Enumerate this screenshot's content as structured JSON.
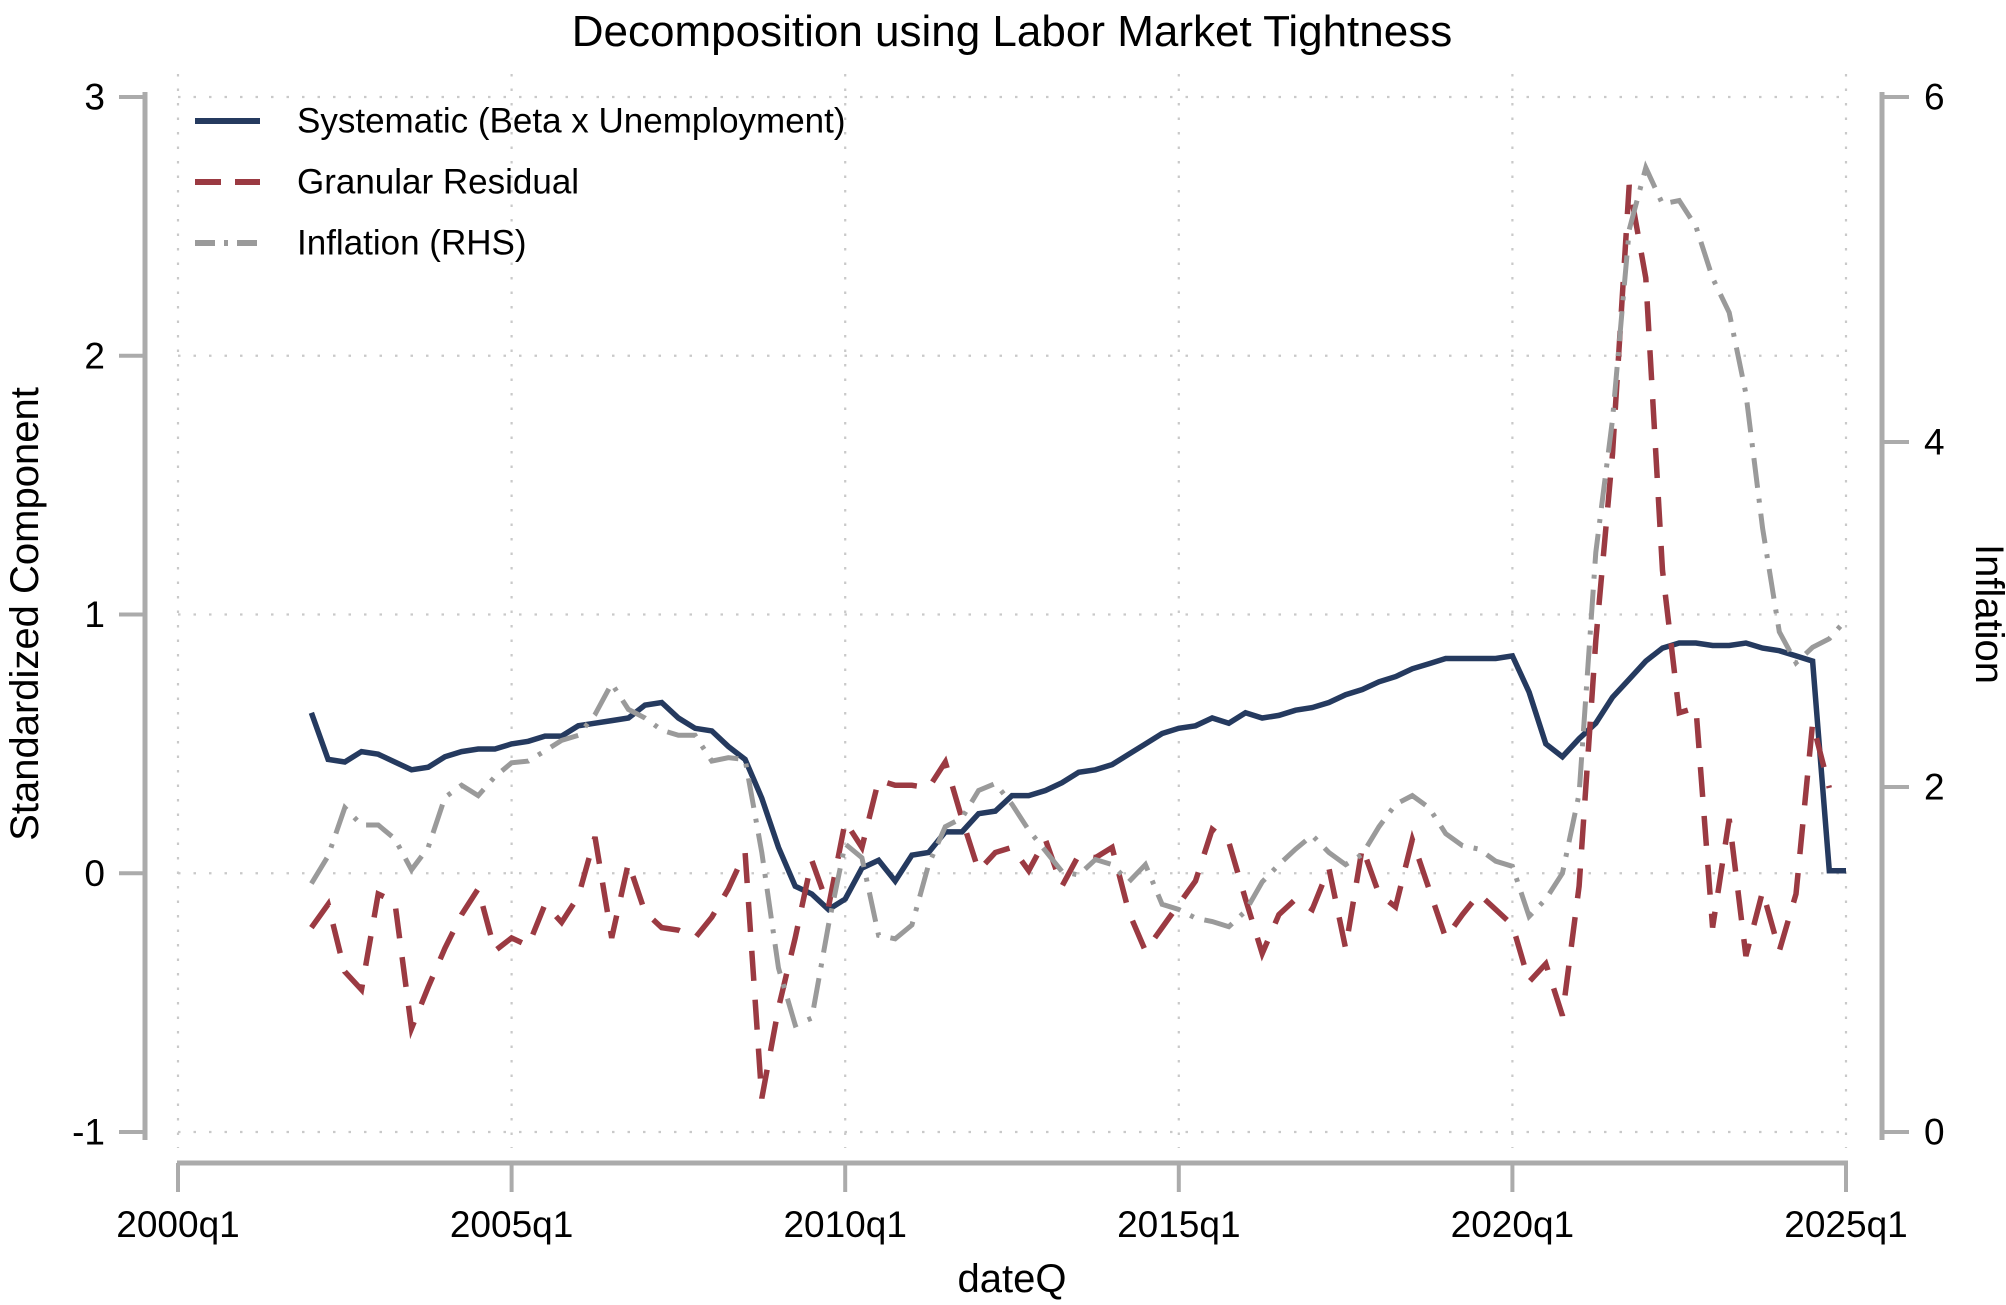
{
  "title": "Decomposition using Labor Market Tightness",
  "axes": {
    "left": {
      "title": "Standardized Component",
      "ticks": [
        "3",
        "2",
        "1",
        "0",
        "-1"
      ],
      "tick_values": [
        3,
        2,
        1,
        0,
        -1
      ],
      "range": [
        -1,
        3
      ]
    },
    "right": {
      "title": "Inflation",
      "ticks": [
        "6",
        "4",
        "2",
        "0"
      ],
      "tick_values": [
        6,
        4,
        2,
        0
      ],
      "range": [
        0,
        6
      ]
    },
    "x": {
      "title": "dateQ",
      "ticks": [
        "2000q1",
        "2005q1",
        "2010q1",
        "2015q1",
        "2020q1",
        "2025q1"
      ],
      "range": [
        "2000q1",
        "2025q1"
      ]
    }
  },
  "legend": {
    "items": [
      {
        "label": "Systematic (Beta x Unemployment)",
        "color": "#253a5f",
        "pattern": "solid"
      },
      {
        "label": "Granular Residual",
        "color": "#9b3a42",
        "pattern": "dashed"
      },
      {
        "label": "Inflation (RHS)",
        "color": "#9a9a9a",
        "pattern": "dash-dot"
      }
    ]
  },
  "colors": {
    "systematic": "#253a5f",
    "granular": "#9b3a42",
    "inflation": "#9a9a9a",
    "axis_line": "#ababab",
    "gridline": "#c9c9c9",
    "text": "#000000",
    "background": "#ffffff"
  },
  "chart_data": {
    "type": "line",
    "grid": true,
    "legend_position": "top-left",
    "xlabel": "dateQ",
    "ylabel_left": "Standardized Component",
    "ylabel_right": "Inflation",
    "ylim_left": [
      -1,
      3
    ],
    "ylim_right": [
      0,
      6
    ],
    "xlim": [
      "2000q1",
      "2025q1"
    ],
    "x": [
      "2002q1",
      "2002q2",
      "2002q3",
      "2002q4",
      "2003q1",
      "2003q2",
      "2003q3",
      "2003q4",
      "2004q1",
      "2004q2",
      "2004q3",
      "2004q4",
      "2005q1",
      "2005q2",
      "2005q3",
      "2005q4",
      "2006q1",
      "2006q2",
      "2006q3",
      "2006q4",
      "2007q1",
      "2007q2",
      "2007q3",
      "2007q4",
      "2008q1",
      "2008q2",
      "2008q3",
      "2008q4",
      "2009q1",
      "2009q2",
      "2009q3",
      "2009q4",
      "2010q1",
      "2010q2",
      "2010q3",
      "2010q4",
      "2011q1",
      "2011q2",
      "2011q3",
      "2011q4",
      "2012q1",
      "2012q2",
      "2012q3",
      "2012q4",
      "2013q1",
      "2013q2",
      "2013q3",
      "2013q4",
      "2014q1",
      "2014q2",
      "2014q3",
      "2014q4",
      "2015q1",
      "2015q2",
      "2015q3",
      "2015q4",
      "2016q1",
      "2016q2",
      "2016q3",
      "2016q4",
      "2017q1",
      "2017q2",
      "2017q3",
      "2017q4",
      "2018q1",
      "2018q2",
      "2018q3",
      "2018q4",
      "2019q1",
      "2019q2",
      "2019q3",
      "2019q4",
      "2020q1",
      "2020q2",
      "2020q3",
      "2020q4",
      "2021q1",
      "2021q2",
      "2021q3",
      "2021q4",
      "2022q1",
      "2022q2",
      "2022q3",
      "2022q4",
      "2023q1",
      "2023q2",
      "2023q3",
      "2023q4",
      "2024q1",
      "2024q2",
      "2024q3",
      "2024q4",
      "2025q1"
    ],
    "series": [
      {
        "name": "Systematic (Beta x Unemployment)",
        "axis": "left",
        "color": "#253a5f",
        "dash": "solid",
        "values": [
          0.62,
          0.44,
          0.43,
          0.47,
          0.46,
          0.43,
          0.4,
          0.41,
          0.45,
          0.47,
          0.48,
          0.48,
          0.5,
          0.51,
          0.53,
          0.53,
          0.57,
          0.58,
          0.59,
          0.6,
          0.65,
          0.66,
          0.6,
          0.56,
          0.55,
          0.49,
          0.44,
          0.29,
          0.1,
          -0.05,
          -0.08,
          -0.14,
          -0.1,
          0.02,
          0.05,
          -0.03,
          0.07,
          0.08,
          0.16,
          0.16,
          0.23,
          0.24,
          0.3,
          0.3,
          0.32,
          0.35,
          0.39,
          0.4,
          0.42,
          0.46,
          0.5,
          0.54,
          0.56,
          0.57,
          0.6,
          0.58,
          0.62,
          0.6,
          0.61,
          0.63,
          0.64,
          0.66,
          0.69,
          0.71,
          0.74,
          0.76,
          0.79,
          0.81,
          0.83,
          0.83,
          0.83,
          0.83,
          0.84,
          0.7,
          0.5,
          0.45,
          0.52,
          0.58,
          0.68,
          0.75,
          0.82,
          0.87,
          0.89,
          0.89,
          0.88,
          0.88,
          0.89,
          0.87,
          0.86,
          0.84,
          0.82,
          0.01,
          0.01
        ]
      },
      {
        "name": "Granular Residual",
        "axis": "left",
        "color": "#9b3a42",
        "dash": "dashed",
        "values": [
          -0.21,
          -0.12,
          -0.38,
          -0.45,
          -0.08,
          -0.11,
          -0.6,
          -0.44,
          -0.29,
          -0.16,
          -0.06,
          -0.3,
          -0.25,
          -0.28,
          -0.12,
          -0.19,
          -0.09,
          0.14,
          -0.25,
          0.04,
          -0.15,
          -0.21,
          -0.22,
          -0.25,
          -0.17,
          -0.06,
          0.08,
          -0.87,
          -0.52,
          -0.25,
          0.05,
          -0.13,
          0.2,
          0.1,
          0.36,
          0.34,
          0.34,
          0.33,
          0.43,
          0.21,
          0.01,
          0.08,
          0.1,
          0.01,
          0.13,
          -0.05,
          0.07,
          0.06,
          0.1,
          -0.15,
          -0.3,
          -0.21,
          -0.12,
          -0.03,
          0.17,
          0.12,
          -0.1,
          -0.31,
          -0.16,
          -0.1,
          -0.14,
          0.02,
          -0.29,
          0.1,
          -0.08,
          -0.13,
          0.13,
          -0.06,
          -0.25,
          -0.16,
          -0.08,
          -0.14,
          -0.2,
          -0.42,
          -0.35,
          -0.55,
          -0.05,
          0.9,
          1.62,
          2.66,
          2.3,
          1.17,
          0.62,
          0.64,
          -0.21,
          0.21,
          -0.32,
          -0.07,
          -0.3,
          -0.08,
          0.58,
          0.33,
          null
        ]
      },
      {
        "name": "Inflation (RHS)",
        "axis": "right",
        "color": "#9a9a9a",
        "dash": "dash-dot",
        "values": [
          1.44,
          1.6,
          1.88,
          1.78,
          1.78,
          1.7,
          1.52,
          1.65,
          1.94,
          2.01,
          1.95,
          2.06,
          2.14,
          2.15,
          2.21,
          2.27,
          2.3,
          2.42,
          2.6,
          2.45,
          2.4,
          2.33,
          2.3,
          2.3,
          2.15,
          2.17,
          2.16,
          1.62,
          0.95,
          0.62,
          0.66,
          1.2,
          1.67,
          1.59,
          1.14,
          1.12,
          1.2,
          1.55,
          1.77,
          1.82,
          1.98,
          2.02,
          1.9,
          1.75,
          1.63,
          1.51,
          1.49,
          1.58,
          1.55,
          1.45,
          1.55,
          1.32,
          1.29,
          1.24,
          1.22,
          1.19,
          1.28,
          1.45,
          1.55,
          1.64,
          1.72,
          1.62,
          1.55,
          1.61,
          1.77,
          1.9,
          1.95,
          1.88,
          1.73,
          1.66,
          1.64,
          1.57,
          1.54,
          1.25,
          1.35,
          1.5,
          1.96,
          3.36,
          4.13,
          5.23,
          5.59,
          5.38,
          5.4,
          5.25,
          4.95,
          4.75,
          4.28,
          3.5,
          2.9,
          2.72,
          2.81,
          2.86,
          2.97
        ]
      }
    ]
  }
}
